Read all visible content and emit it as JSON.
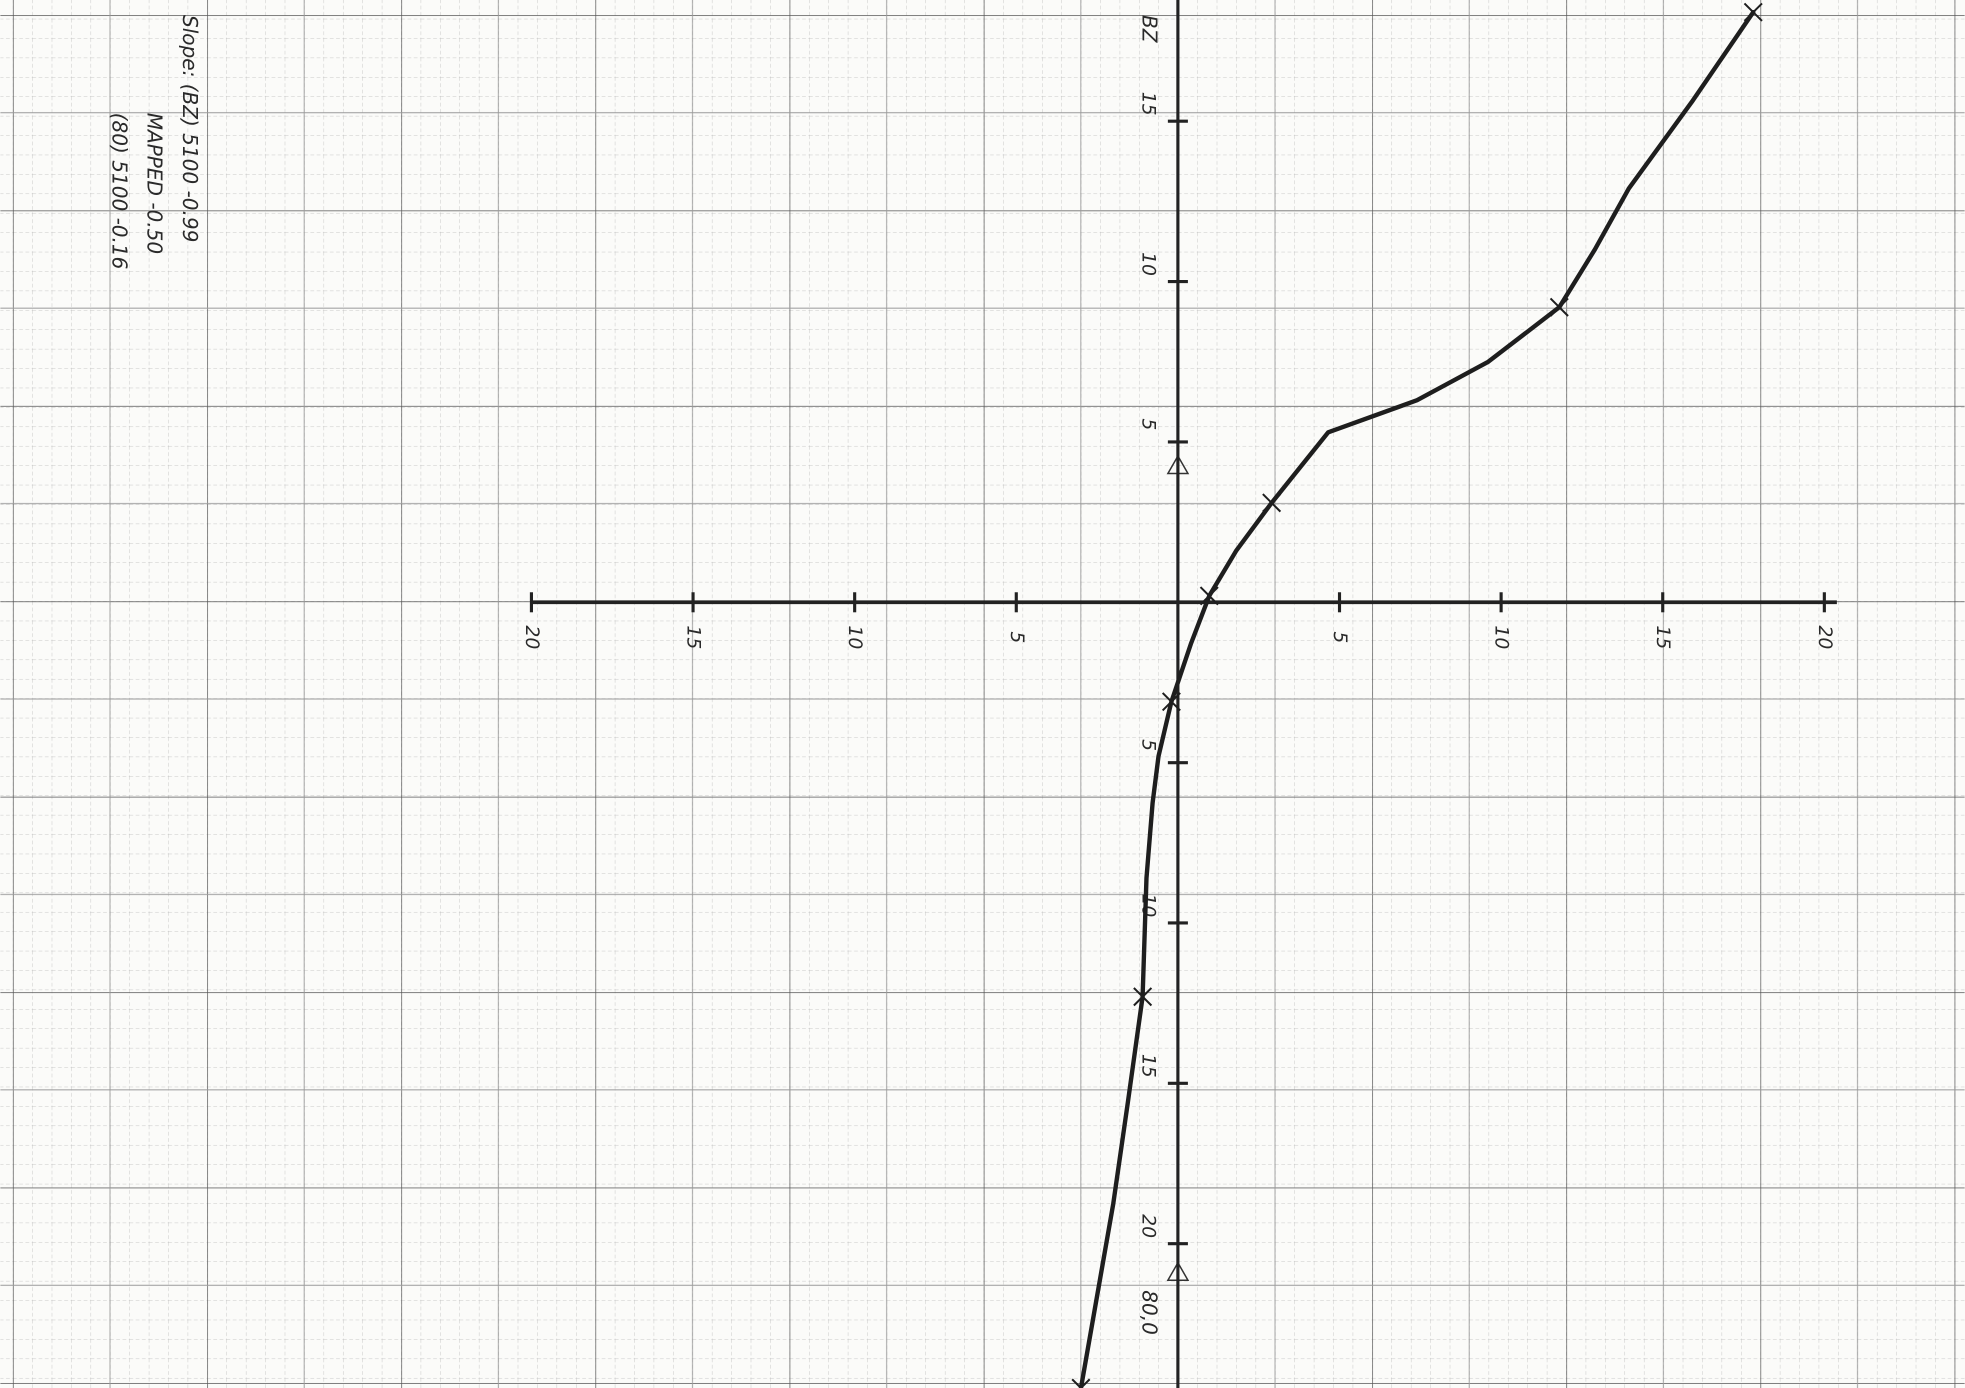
{
  "chart_data": {
    "type": "line",
    "annotations": [
      "Slope: (BZ) 5100  -0.99",
      "MAPPED  -0.50",
      "(80) 5100  -0.16",
      "BZ",
      "80,0"
    ],
    "xlim": [
      -36.43,
      24.34
    ],
    "ylim": [
      -24.5,
      18.78
    ],
    "xticks": [
      {
        "value": -20,
        "label": "20"
      },
      {
        "value": -15,
        "label": "15"
      },
      {
        "value": -10,
        "label": "10"
      },
      {
        "value": -5,
        "label": "5"
      },
      5,
      10,
      15,
      20
    ],
    "yticks": [
      15,
      10,
      5,
      {
        "value": -5,
        "label": "5"
      },
      {
        "value": -10,
        "label": "10"
      },
      {
        "value": -15,
        "label": "15"
      },
      {
        "value": -20,
        "label": "20"
      }
    ],
    "grid": true,
    "series": [
      {
        "color": "#1e1e1e",
        "x": [
          17.8,
          15.9,
          13.95,
          12.9,
          11.8,
          9.6,
          7.4,
          4.65,
          2.9,
          1.8,
          0.97,
          0.4,
          -0.2,
          -0.6,
          -0.78,
          -0.97,
          -1.09,
          -1.55,
          -2.0,
          -3.0
        ],
        "values": [
          18.4,
          15.6,
          12.9,
          11.0,
          9.2,
          7.5,
          6.3,
          5.3,
          3.1,
          1.6,
          0.2,
          -1.3,
          -3.1,
          -4.8,
          -6.25,
          -8.6,
          -12.3,
          -15.6,
          -18.75,
          -24.5
        ]
      },
      {
        "type": "scatter",
        "marker": "cross",
        "color": "#1e1e1e",
        "x": [
          17.8,
          11.8,
          2.9,
          0.97,
          -0.2,
          -1.09,
          -3.0
        ],
        "values": [
          18.4,
          9.2,
          3.1,
          0.2,
          -3.1,
          -12.3,
          -24.5
        ]
      }
    ]
  }
}
